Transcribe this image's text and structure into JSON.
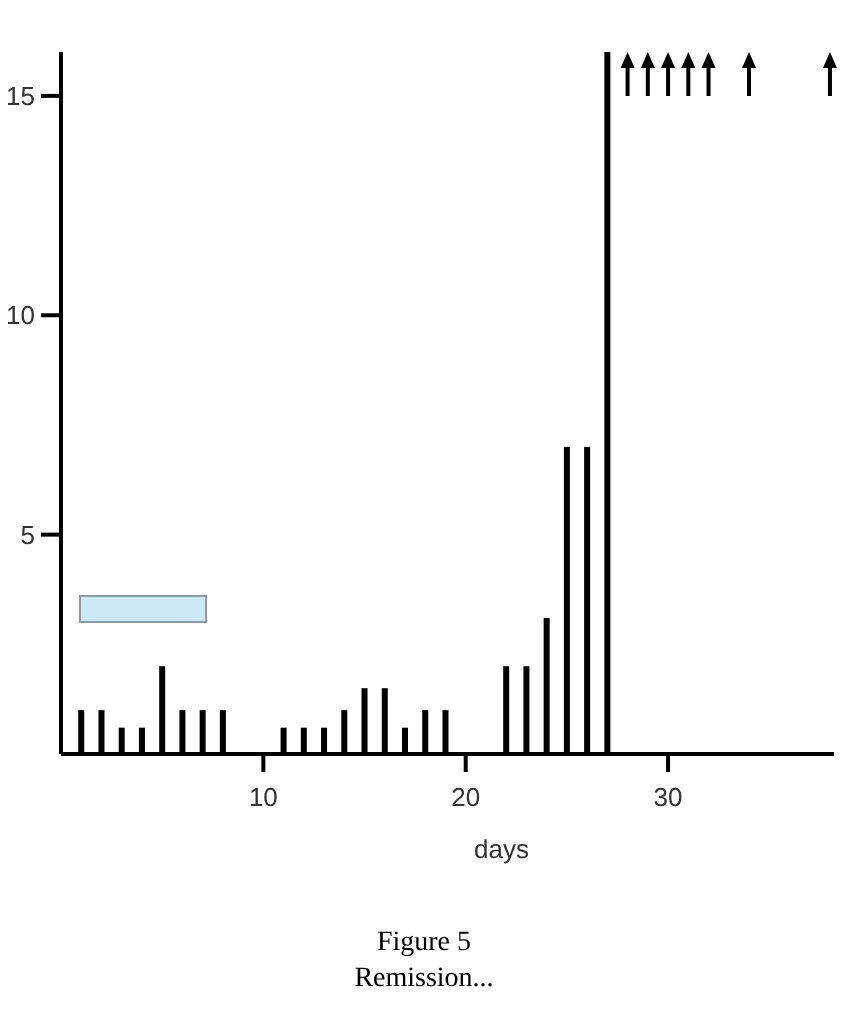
{
  "chart_data": {
    "type": "bar",
    "xlabel": "days",
    "x": [
      1,
      2,
      3,
      4,
      5,
      6,
      7,
      8,
      11,
      12,
      13,
      14,
      15,
      16,
      17,
      18,
      19,
      22,
      23,
      24,
      25,
      26,
      27
    ],
    "series": [
      {
        "color": "#000000",
        "values": [
          1,
          1,
          0.6,
          0.6,
          2,
          1,
          1,
          1,
          0.6,
          0.6,
          0.6,
          1,
          1.5,
          1.5,
          0.6,
          1,
          1,
          2,
          2,
          3.1,
          7,
          7,
          16
        ]
      },
      {
        "type": "scatter",
        "marker": "triangle",
        "color": "#000000",
        "x": [
          28,
          29,
          30,
          31,
          32,
          34,
          38
        ],
        "values": [
          15.5,
          15.5,
          15.5,
          15.5,
          15.5,
          15.5,
          15.5
        ]
      }
    ],
    "xlim": [
      0,
      38.2
    ],
    "xticks": [
      10,
      20,
      30
    ],
    "ylim": [
      0,
      16
    ],
    "yticks": [
      5,
      10,
      15
    ],
    "grid": false,
    "annotations": [
      "Figure 5",
      "Remission..."
    ]
  }
}
